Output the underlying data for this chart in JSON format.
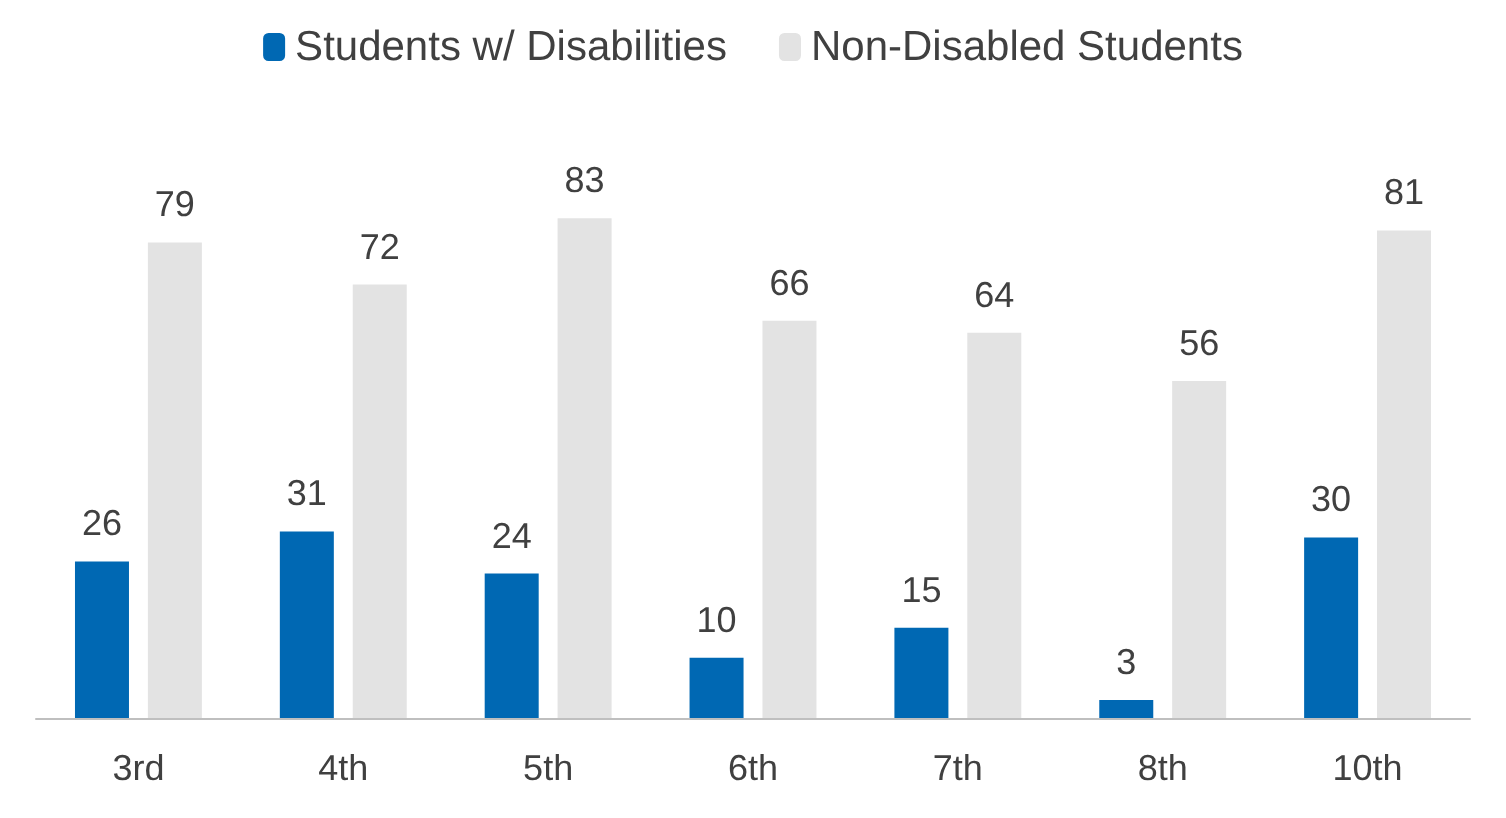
{
  "chart_data": {
    "type": "bar",
    "categories": [
      "3rd",
      "4th",
      "5th",
      "6th",
      "7th",
      "8th",
      "10th"
    ],
    "series": [
      {
        "name": "Students w/ Disabilities",
        "color": "#0068b3",
        "values": [
          26,
          31,
          24,
          10,
          15,
          3,
          30
        ]
      },
      {
        "name": "Non-Disabled Students",
        "color": "#e3e3e3",
        "values": [
          79,
          72,
          83,
          66,
          64,
          56,
          81
        ]
      }
    ],
    "data_labels": true,
    "legend": "top",
    "grid": false
  }
}
